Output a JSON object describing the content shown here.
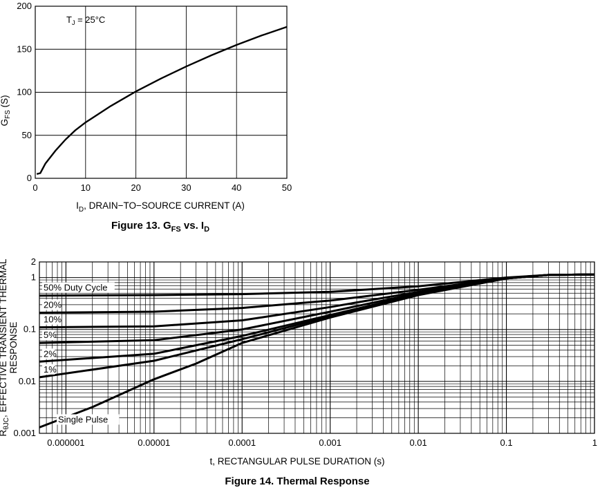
{
  "chart_data": [
    {
      "type": "line",
      "caption": {
        "pre": "Figure 13. G",
        "sub": "FS",
        "mid": " vs. I",
        "sub2": "D"
      },
      "ylabel": {
        "main": "G",
        "sub": "FS",
        "rest": " (S)"
      },
      "xlabel": {
        "main": "I",
        "sub": "D",
        "rest": ", DRAIN−TO−SOURCE CURRENT (A)"
      },
      "annotation": {
        "main": "T",
        "sub": "J",
        "rest": " = 25°C"
      },
      "xlim": [
        0,
        50
      ],
      "ylim": [
        0,
        200
      ],
      "xticks": [
        "0",
        "10",
        "20",
        "30",
        "40",
        "50"
      ],
      "yticks": [
        "0",
        "50",
        "100",
        "150",
        "200"
      ],
      "grid": true,
      "series": [
        {
          "name": "GFS",
          "x": [
            0.3,
            1,
            2,
            4,
            6,
            8,
            10,
            15,
            20,
            25,
            30,
            35,
            40,
            45,
            50
          ],
          "y": [
            5,
            6,
            17,
            32,
            45,
            56,
            65,
            84,
            101,
            116,
            130,
            143,
            155,
            166,
            176
          ]
        }
      ]
    },
    {
      "type": "line",
      "caption": "Figure 14. Thermal Response",
      "ylabel": {
        "main": "R",
        "sub": "θJC",
        "rest": ", EFFECTIVE TRANSIENT THERMAL"
      },
      "ylabel2": "RESPONSE",
      "xlabel": "t, RECTANGULAR PULSE DURATION (s)",
      "xscale": "log",
      "yscale": "log",
      "xlim": [
        5e-07,
        1
      ],
      "ylim": [
        0.001,
        2
      ],
      "xticks": [
        {
          "v": 1e-06,
          "label": "0.000001"
        },
        {
          "v": 1e-05,
          "label": "0.00001"
        },
        {
          "v": 0.0001,
          "label": "0.0001"
        },
        {
          "v": 0.001,
          "label": "0.001"
        },
        {
          "v": 0.01,
          "label": "0.01"
        },
        {
          "v": 0.1,
          "label": "0.1"
        },
        {
          "v": 1,
          "label": "1"
        }
      ],
      "yticks": [
        {
          "v": 0.001,
          "label": "0.001"
        },
        {
          "v": 0.01,
          "label": "0.01"
        },
        {
          "v": 0.1,
          "label": "0.1"
        },
        {
          "v": 1,
          "label": "1"
        },
        {
          "v": 2,
          "label": "2"
        }
      ],
      "grid": true,
      "series": [
        {
          "name": "50% Duty Cycle",
          "x": [
            5e-07,
            1e-05,
            0.0001,
            0.001,
            0.01,
            0.1,
            0.3,
            1
          ],
          "y": [
            0.45,
            0.46,
            0.48,
            0.53,
            0.68,
            1.0,
            1.12,
            1.15
          ]
        },
        {
          "name": "20%",
          "x": [
            5e-07,
            1e-05,
            0.0001,
            0.001,
            0.01,
            0.1,
            0.3,
            1
          ],
          "y": [
            0.21,
            0.22,
            0.26,
            0.36,
            0.58,
            0.98,
            1.12,
            1.15
          ]
        },
        {
          "name": "10%",
          "x": [
            5e-07,
            1e-05,
            0.0001,
            0.001,
            0.01,
            0.1,
            0.3,
            1
          ],
          "y": [
            0.11,
            0.115,
            0.15,
            0.27,
            0.53,
            0.97,
            1.12,
            1.15
          ]
        },
        {
          "name": "5%",
          "x": [
            5e-07,
            1e-05,
            0.0001,
            0.001,
            0.01,
            0.1,
            0.3,
            1
          ],
          "y": [
            0.055,
            0.062,
            0.1,
            0.22,
            0.5,
            0.97,
            1.12,
            1.15
          ]
        },
        {
          "name": "2%",
          "x": [
            5e-07,
            1e-05,
            0.0001,
            0.001,
            0.01,
            0.1,
            0.3,
            1
          ],
          "y": [
            0.024,
            0.034,
            0.075,
            0.19,
            0.48,
            0.96,
            1.12,
            1.15
          ]
        },
        {
          "name": "1%",
          "x": [
            5e-07,
            1e-05,
            0.0001,
            0.001,
            0.01,
            0.1,
            0.3,
            1
          ],
          "y": [
            0.012,
            0.025,
            0.065,
            0.18,
            0.47,
            0.96,
            1.12,
            1.15
          ]
        },
        {
          "name": "Single Pulse",
          "x": [
            5e-07,
            2e-06,
            1e-05,
            3e-05,
            0.0001,
            0.001,
            0.01,
            0.1,
            0.3,
            1
          ],
          "y": [
            0.0013,
            0.0032,
            0.011,
            0.022,
            0.055,
            0.17,
            0.46,
            0.96,
            1.12,
            1.15
          ]
        }
      ]
    }
  ]
}
